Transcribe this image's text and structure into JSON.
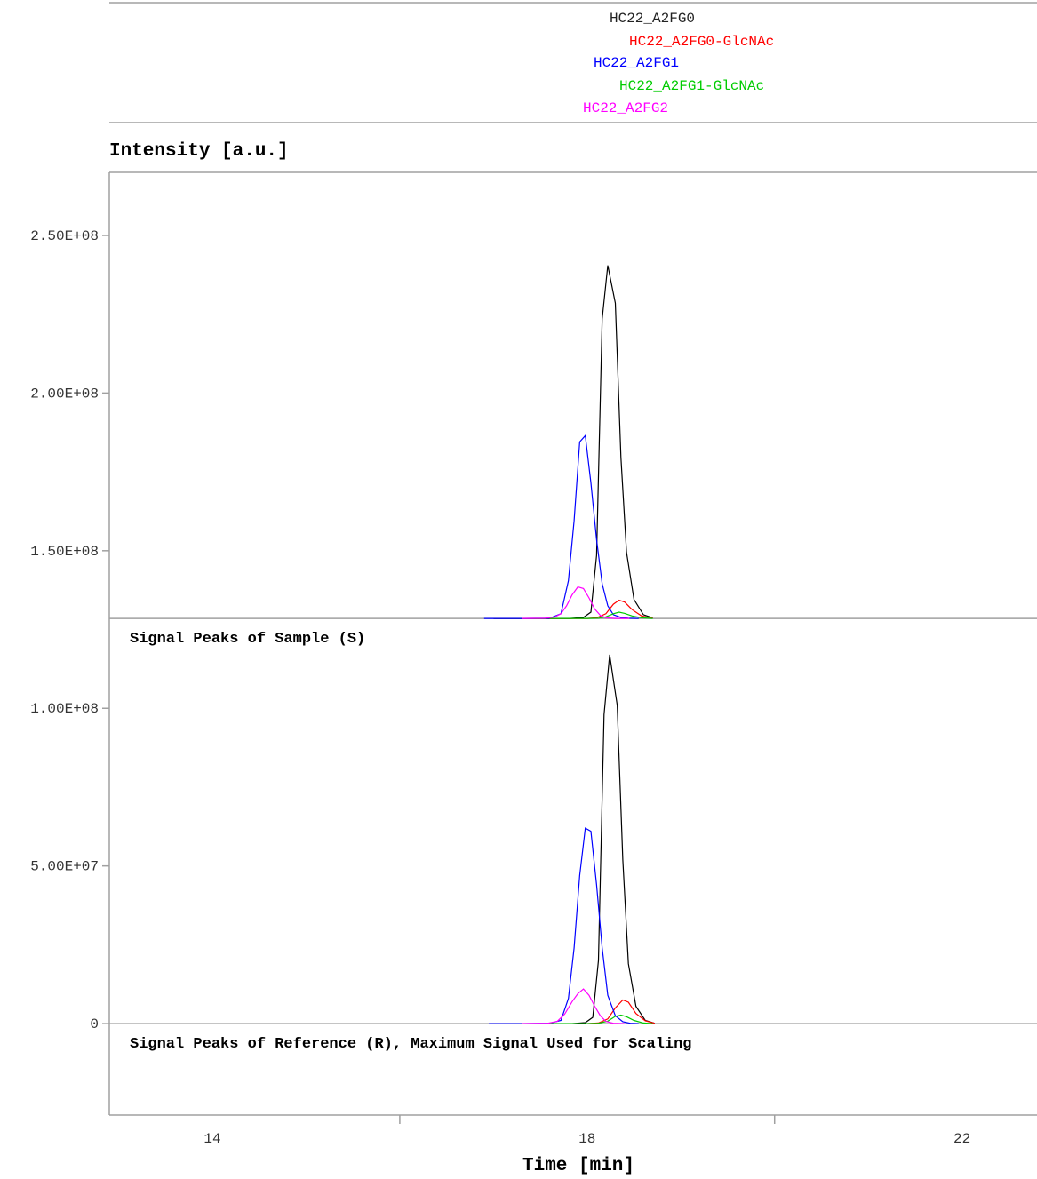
{
  "chart_data": {
    "type": "line",
    "ylabel": "Intensity [a.u.]",
    "xlabel": "Time [min]",
    "legend": {
      "position": "top-center",
      "entries": [
        {
          "name": "HC22_A2FG0",
          "color": "#222222"
        },
        {
          "name": "HC22_A2FG0-GlcNAc",
          "color": "#ff0000"
        },
        {
          "name": "HC22_A2FG1",
          "color": "#0000ff"
        },
        {
          "name": "HC22_A2FG1-GlcNAc",
          "color": "#00cc00"
        },
        {
          "name": "HC22_A2FG2",
          "color": "#ff00ff"
        }
      ]
    },
    "xlim": [
      12.9,
      22.8
    ],
    "x_ticks": [
      14,
      18,
      22
    ],
    "x_minor_ticks": [
      16,
      20
    ],
    "ylim": [
      -29000000,
      270000000
    ],
    "y_ticks": [
      0,
      50000000,
      100000000,
      150000000,
      200000000,
      250000000
    ],
    "y_tick_labels": [
      "0",
      "5.00E+07",
      "1.00E+08",
      "1.50E+08",
      "2.00E+08",
      "2.50E+08"
    ],
    "grid": false,
    "panels": [
      {
        "label": "Signal Peaks of Sample (S)",
        "baseline": 128500000,
        "series": [
          {
            "name": "HC22_A2FG0",
            "color": "#000000",
            "x": [
              17.0,
              17.3,
              17.6,
              17.82,
              17.96,
              18.04,
              18.1,
              18.16,
              18.22,
              18.3,
              18.36,
              18.42,
              18.5,
              18.6,
              18.7
            ],
            "y": [
              0,
              0,
              0,
              0,
              300000,
              2000000,
              20000000,
              95000000,
              112000000,
              100000000,
              51000000,
              21000000,
              6000000,
              1200000,
              200000
            ]
          },
          {
            "name": "HC22_A2FG0-GlcNAc",
            "color": "#ff0000",
            "x": [
              17.6,
              18.0,
              18.1,
              18.2,
              18.28,
              18.34,
              18.4,
              18.48,
              18.58,
              18.7
            ],
            "y": [
              0,
              0,
              200000,
              1500000,
              4500000,
              5800000,
              5200000,
              2800000,
              800000,
              100000
            ]
          },
          {
            "name": "HC22_A2FG1",
            "color": "#0000ff",
            "x": [
              16.9,
              17.3,
              17.6,
              17.72,
              17.8,
              17.86,
              17.92,
              17.98,
              18.04,
              18.1,
              18.16,
              18.22,
              18.28,
              18.36,
              18.44,
              18.55
            ],
            "y": [
              0,
              0,
              100000,
              1500000,
              12000000,
              31000000,
              56000000,
              58000000,
              43000000,
              25000000,
              11000000,
              4000000,
              1200000,
              300000,
              50000,
              0
            ]
          },
          {
            "name": "HC22_A2FG1-GlcNAc",
            "color": "#00cc00",
            "x": [
              17.6,
              18.0,
              18.12,
              18.2,
              18.28,
              18.34,
              18.4,
              18.48,
              18.58,
              18.7
            ],
            "y": [
              0,
              0,
              100000,
              500000,
              1500000,
              2000000,
              1600000,
              800000,
              200000,
              0
            ]
          },
          {
            "name": "HC22_A2FG2",
            "color": "#ff00ff",
            "x": [
              17.3,
              17.55,
              17.65,
              17.72,
              17.78,
              17.84,
              17.9,
              17.96,
              18.02,
              18.08,
              18.14,
              18.2,
              18.3,
              18.45
            ],
            "y": [
              0,
              100000,
              400000,
              1500000,
              4000000,
              7500000,
              10000000,
              9500000,
              6500000,
              3000000,
              1000000,
              200000,
              0,
              0
            ]
          }
        ]
      },
      {
        "label": "Signal Peaks of Reference (R), Maximum Signal Used for Scaling",
        "baseline": 0,
        "series": [
          {
            "name": "HC22_A2FG0",
            "color": "#000000",
            "x": [
              17.0,
              17.3,
              17.6,
              17.84,
              17.98,
              18.06,
              18.12,
              18.18,
              18.24,
              18.32,
              18.38,
              18.44,
              18.52,
              18.62,
              18.72
            ],
            "y": [
              0,
              0,
              0,
              0,
              300000,
              2000000,
              20000000,
              98000000,
              117000000,
              101000000,
              52000000,
              19000000,
              5500000,
              1000000,
              100000
            ]
          },
          {
            "name": "HC22_A2FG0-GlcNAc",
            "color": "#ff0000",
            "x": [
              17.6,
              18.0,
              18.12,
              18.22,
              18.3,
              18.38,
              18.44,
              18.52,
              18.62,
              18.72
            ],
            "y": [
              0,
              0,
              200000,
              1500000,
              5000000,
              7500000,
              6800000,
              3200000,
              900000,
              100000
            ]
          },
          {
            "name": "HC22_A2FG1",
            "color": "#0000ff",
            "x": [
              16.95,
              17.3,
              17.6,
              17.72,
              17.8,
              17.86,
              17.92,
              17.98,
              18.04,
              18.1,
              18.16,
              18.22,
              18.3,
              18.38,
              18.46,
              18.55
            ],
            "y": [
              0,
              0,
              100000,
              1000000,
              8000000,
              24000000,
              47000000,
              62000000,
              61000000,
              44000000,
              24000000,
              9000000,
              2500000,
              600000,
              100000,
              0
            ]
          },
          {
            "name": "HC22_A2FG1-GlcNAc",
            "color": "#00cc00",
            "x": [
              17.6,
              18.0,
              18.12,
              18.22,
              18.3,
              18.36,
              18.42,
              18.5,
              18.6,
              18.7
            ],
            "y": [
              0,
              0,
              100000,
              800000,
              2300000,
              2700000,
              2200000,
              1000000,
              200000,
              0
            ]
          },
          {
            "name": "HC22_A2FG2",
            "color": "#ff00ff",
            "x": [
              17.3,
              17.58,
              17.68,
              17.76,
              17.84,
              17.9,
              17.96,
              18.02,
              18.08,
              18.14,
              18.2,
              18.28,
              18.4
            ],
            "y": [
              0,
              100000,
              700000,
              3000000,
              7000000,
              9500000,
              11000000,
              9000000,
              5500000,
              2500000,
              700000,
              100000,
              0
            ]
          }
        ]
      }
    ]
  }
}
